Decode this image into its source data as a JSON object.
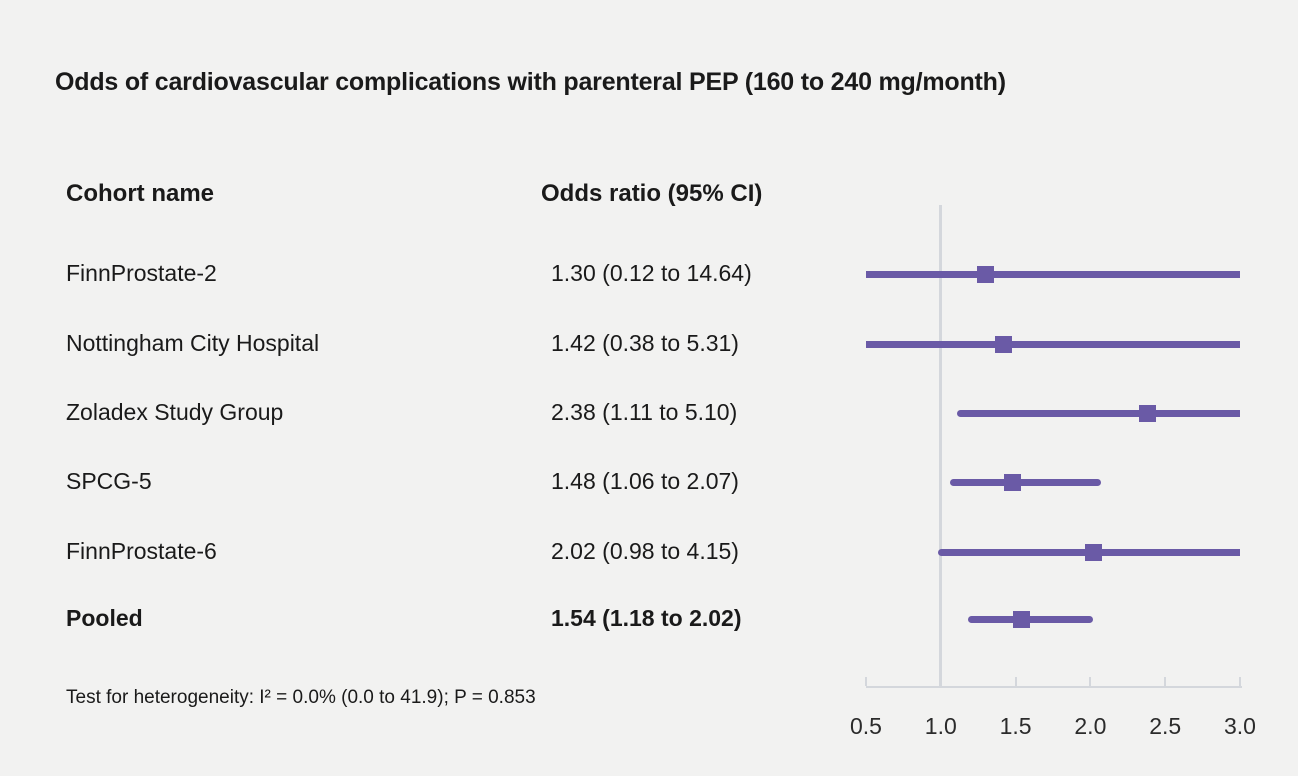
{
  "title": "Odds of cardiovascular complications with parenteral PEP (160 to 240 mg/month)",
  "table": {
    "headers": {
      "cohort": "Cohort name",
      "odds": "Odds ratio (95% CI)"
    },
    "rows": [
      {
        "name": "FinnProstate-2",
        "or_text": "1.30 (0.12 to 14.64)"
      },
      {
        "name": "Nottingham City Hospital",
        "or_text": "1.42 (0.38 to 5.31)"
      },
      {
        "name": "Zoladex Study Group",
        "or_text": "2.38 (1.11 to 5.10)"
      },
      {
        "name": "SPCG-5",
        "or_text": "1.48 (1.06 to 2.07)"
      },
      {
        "name": "FinnProstate-6",
        "or_text": "2.02 (0.98 to 4.15)"
      },
      {
        "name": "Pooled",
        "or_text": "1.54 (1.18 to 2.02)"
      }
    ]
  },
  "footnote": "Test for heterogeneity: I² = 0.0% (0.0 to 41.9); P = 0.853",
  "colors": {
    "background": "#f2f2f1",
    "marker_purple": "#6a5aa6",
    "axis_gray": "#d4d7dc",
    "text": "#1a1a1a"
  },
  "chart_data": {
    "type": "forest",
    "title": "Odds of cardiovascular complications with parenteral PEP (160 to 240 mg/month)",
    "xlabel": "",
    "ylabel": "",
    "xlim": [
      0.5,
      3.0
    ],
    "x_ticks": [
      0.5,
      1.0,
      1.5,
      2.0,
      2.5,
      3.0
    ],
    "x_tick_labels": [
      "0.5",
      "1.0",
      "1.5",
      "2.0",
      "2.5",
      "3.0"
    ],
    "reference_line_x": 1.0,
    "marker": "square",
    "note": "CI lines are clipped to xlim; clipped ends drawn flat, unclipped ends rounded",
    "rows": [
      {
        "label": "FinnProstate-2",
        "or": 1.3,
        "ci_low": 0.12,
        "ci_high": 14.64,
        "pooled": false
      },
      {
        "label": "Nottingham City Hospital",
        "or": 1.42,
        "ci_low": 0.38,
        "ci_high": 5.31,
        "pooled": false
      },
      {
        "label": "Zoladex Study Group",
        "or": 2.38,
        "ci_low": 1.11,
        "ci_high": 5.1,
        "pooled": false
      },
      {
        "label": "SPCG-5",
        "or": 1.48,
        "ci_low": 1.06,
        "ci_high": 2.07,
        "pooled": false
      },
      {
        "label": "FinnProstate-6",
        "or": 2.02,
        "ci_low": 0.98,
        "ci_high": 4.15,
        "pooled": false
      },
      {
        "label": "Pooled",
        "or": 1.54,
        "ci_low": 1.18,
        "ci_high": 2.02,
        "pooled": true
      }
    ]
  }
}
